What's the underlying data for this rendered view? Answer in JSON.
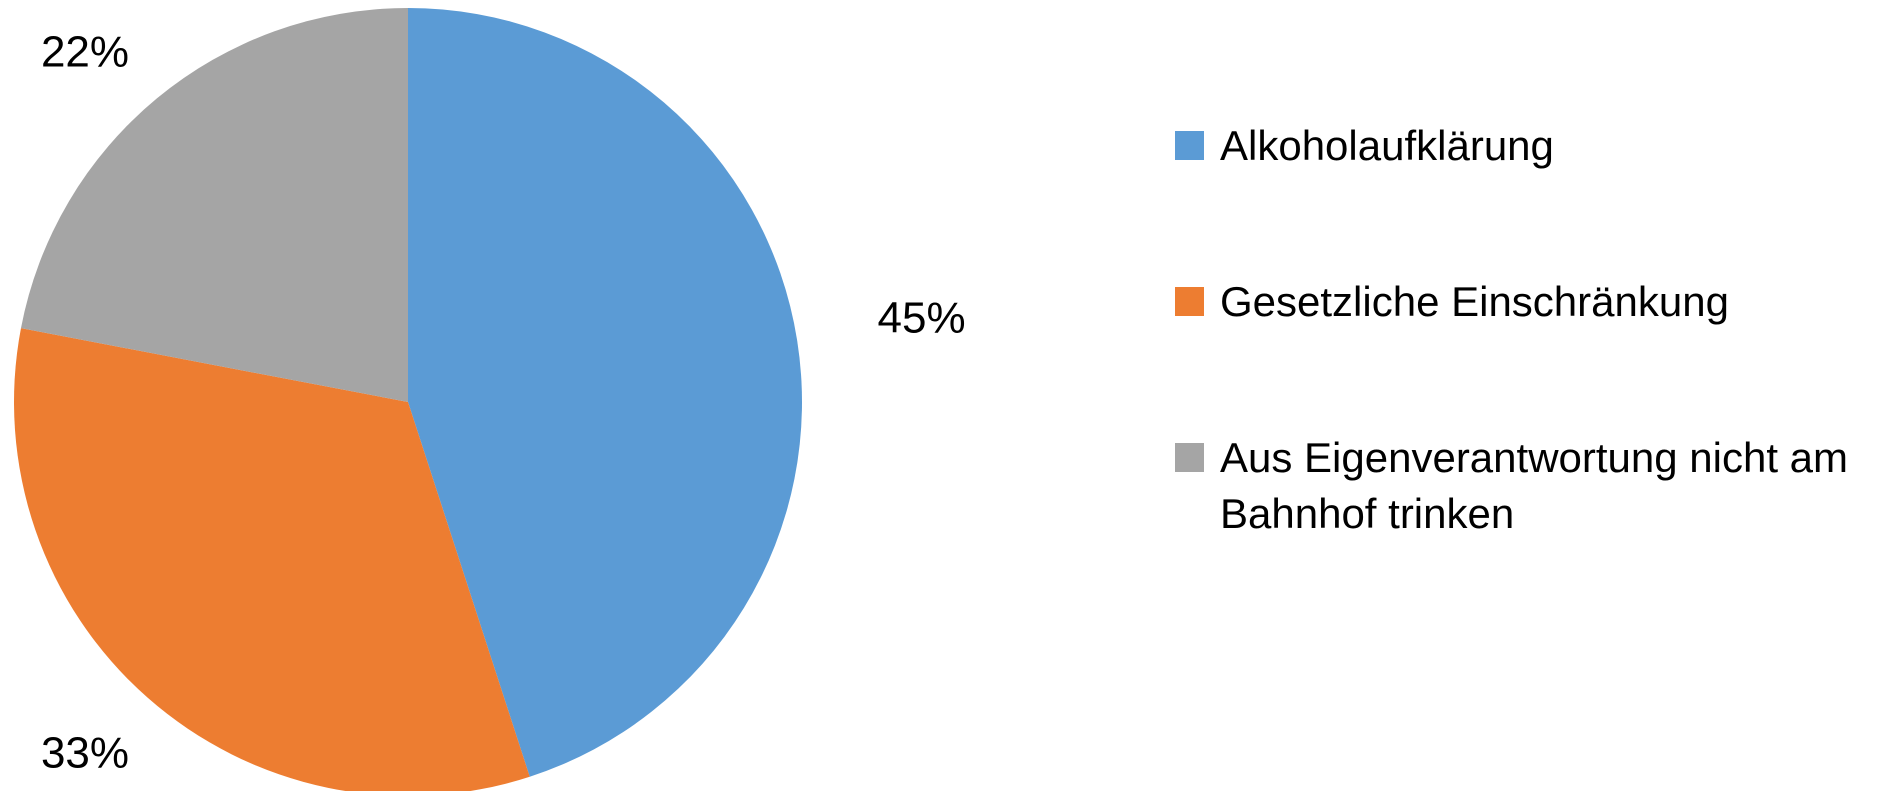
{
  "chart_data": {
    "type": "pie",
    "categories": [
      "Alkoholaufklärung",
      "Gesetzliche Einschränkung",
      "Aus Eigenverantwortung nicht am Bahnhof trinken"
    ],
    "values": [
      45,
      33,
      22
    ],
    "value_labels": [
      "45%",
      "33%",
      "22%"
    ],
    "colors": [
      "#5b9bd5",
      "#ed7d31",
      "#a5a5a5"
    ],
    "legend": "right"
  }
}
